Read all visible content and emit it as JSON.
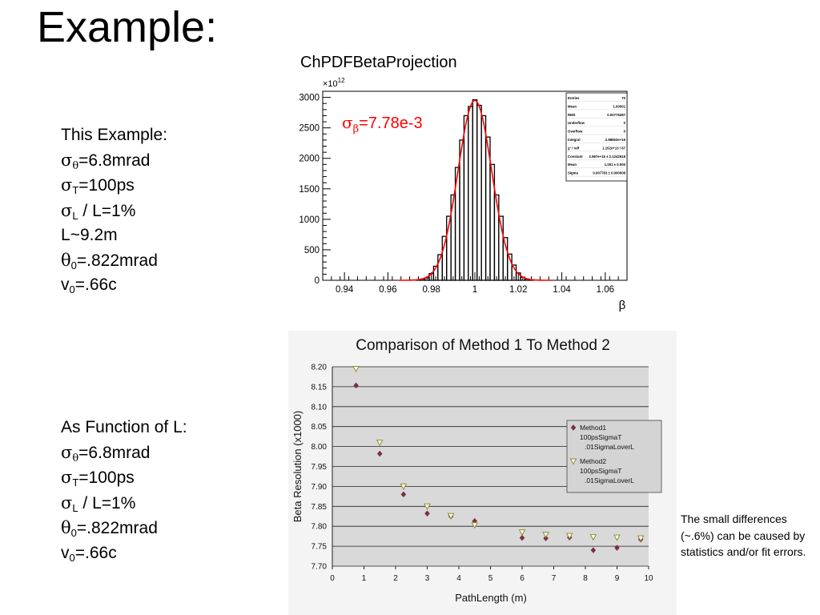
{
  "slide": {
    "title": "Example:",
    "left_panel_1": {
      "heading": "This Example:",
      "lines": [
        {
          "sym": "σ",
          "sub": "θ",
          "rest": "=6.8mrad"
        },
        {
          "sym": "σ",
          "sub": "T",
          "rest": "=100ps"
        },
        {
          "sym": "σ",
          "sub": "L",
          "rest": " / L=1%"
        },
        {
          "sym": "",
          "sub": "",
          "rest": "L~9.2m"
        },
        {
          "sym": "θ",
          "sub": "0",
          "rest": "=.822mrad"
        },
        {
          "sym": "v",
          "sub": "0",
          "rest": "=.66c"
        }
      ]
    },
    "left_panel_2": {
      "heading": "As Function of L:",
      "lines": [
        {
          "sym": "σ",
          "sub": "θ",
          "rest": "=6.8mrad"
        },
        {
          "sym": "σ",
          "sub": "T",
          "rest": "=100ps"
        },
        {
          "sym": "σ",
          "sub": "L",
          "rest": " / L=1%"
        },
        {
          "sym": "θ",
          "sub": "0",
          "rest": "=.822mrad"
        },
        {
          "sym": "v",
          "sub": "0",
          "rest": "=.66c"
        }
      ]
    },
    "note": "The small differences (~.6%) can be caused by statistics and/or fit errors."
  },
  "chart_data": [
    {
      "type": "bar",
      "title": "ChPDFBetaProjection",
      "xlabel": "β",
      "ylabel": "",
      "y_multiplier_label": "×10",
      "y_multiplier_exp": "12",
      "xlim": [
        0.93,
        1.07
      ],
      "ylim": [
        0,
        3100
      ],
      "xticks": [
        "0.94",
        "0.96",
        "0.98",
        "1",
        "1.02",
        "1.04",
        "1.06"
      ],
      "yticks": [
        "0",
        "500",
        "1000",
        "1500",
        "2000",
        "2500",
        "3000"
      ],
      "annotation": {
        "sym": "σ",
        "sub": "β",
        "rest": "=7.78e-3",
        "color": "#ff0000"
      },
      "hist_color": "#000000",
      "fit_color": "#ff0000",
      "bin_width": 0.002,
      "series": [
        {
          "x": [
            0.974,
            0.976,
            0.978,
            0.98,
            0.982,
            0.984,
            0.986,
            0.988,
            0.99,
            0.992,
            0.994,
            0.996,
            0.998,
            1.0,
            1.002,
            1.004,
            1.006,
            1.008,
            1.01,
            1.012,
            1.014,
            1.016,
            1.018,
            1.02,
            1.022,
            1.024,
            1.026
          ],
          "values": [
            5,
            20,
            40,
            110,
            230,
            420,
            720,
            1050,
            1400,
            1850,
            2300,
            2700,
            2850,
            2960,
            2870,
            2700,
            2350,
            1900,
            1400,
            1050,
            700,
            430,
            250,
            120,
            50,
            20,
            8
          ]
        }
      ],
      "fit": {
        "mean": 1.0,
        "sigma": 0.00778,
        "constant": 2950
      },
      "stats": [
        [
          "Entries",
          "70"
        ],
        [
          "Mean",
          "1.00001"
        ],
        [
          "RMS",
          "0.00776287"
        ],
        [
          "Underflow",
          "0"
        ],
        [
          "Overflow",
          "0"
        ],
        [
          "Integral",
          "2.88563e+16"
        ],
        [
          "χ² / ndf",
          "1.152e+13 / 67"
        ],
        [
          "Constant",
          "2.967e+15 ± 2.1242618"
        ],
        [
          "Mean",
          "1.001 ± 0.000"
        ],
        [
          "Sigma",
          "0.007783 ± 0.000008"
        ]
      ]
    },
    {
      "type": "scatter",
      "title": "Comparison of Method 1 To Method 2",
      "xlabel": "PathLength (m)",
      "ylabel": "Beta Resolution (x1000)",
      "xlim": [
        0,
        10
      ],
      "ylim": [
        7.7,
        8.2
      ],
      "xticks": [
        "0",
        "1",
        "2",
        "3",
        "4",
        "5",
        "6",
        "7",
        "8",
        "9",
        "10"
      ],
      "yticks": [
        "7.70",
        "7.75",
        "7.80",
        "7.85",
        "7.90",
        "7.95",
        "8.00",
        "8.05",
        "8.10",
        "8.15",
        "8.20"
      ],
      "grid": true,
      "legend_position": "right",
      "series": [
        {
          "name": "Method1",
          "sub": [
            "100psSigmaT",
            ".01SigmaLoverL"
          ],
          "color": "#7a2f45",
          "marker": "diamond",
          "x": [
            0.75,
            1.5,
            2.25,
            3.0,
            3.75,
            4.5,
            6.0,
            6.75,
            7.5,
            8.25,
            9.0,
            9.75
          ],
          "values": [
            8.153,
            7.982,
            7.88,
            7.832,
            7.825,
            7.813,
            7.771,
            7.77,
            7.772,
            7.74,
            7.746,
            7.767
          ]
        },
        {
          "name": "Method2",
          "sub": [
            "100psSigmaT",
            ".01SigmaLoverL"
          ],
          "color": "#8f8f2a",
          "marker": "triangle-down",
          "x": [
            0.75,
            1.5,
            2.25,
            3.0,
            3.75,
            4.5,
            6.0,
            6.75,
            7.5,
            8.25,
            9.0,
            9.75
          ],
          "values": [
            8.195,
            8.01,
            7.9,
            7.85,
            7.826,
            7.803,
            7.785,
            7.779,
            7.776,
            7.773,
            7.772,
            7.77
          ]
        }
      ]
    }
  ]
}
